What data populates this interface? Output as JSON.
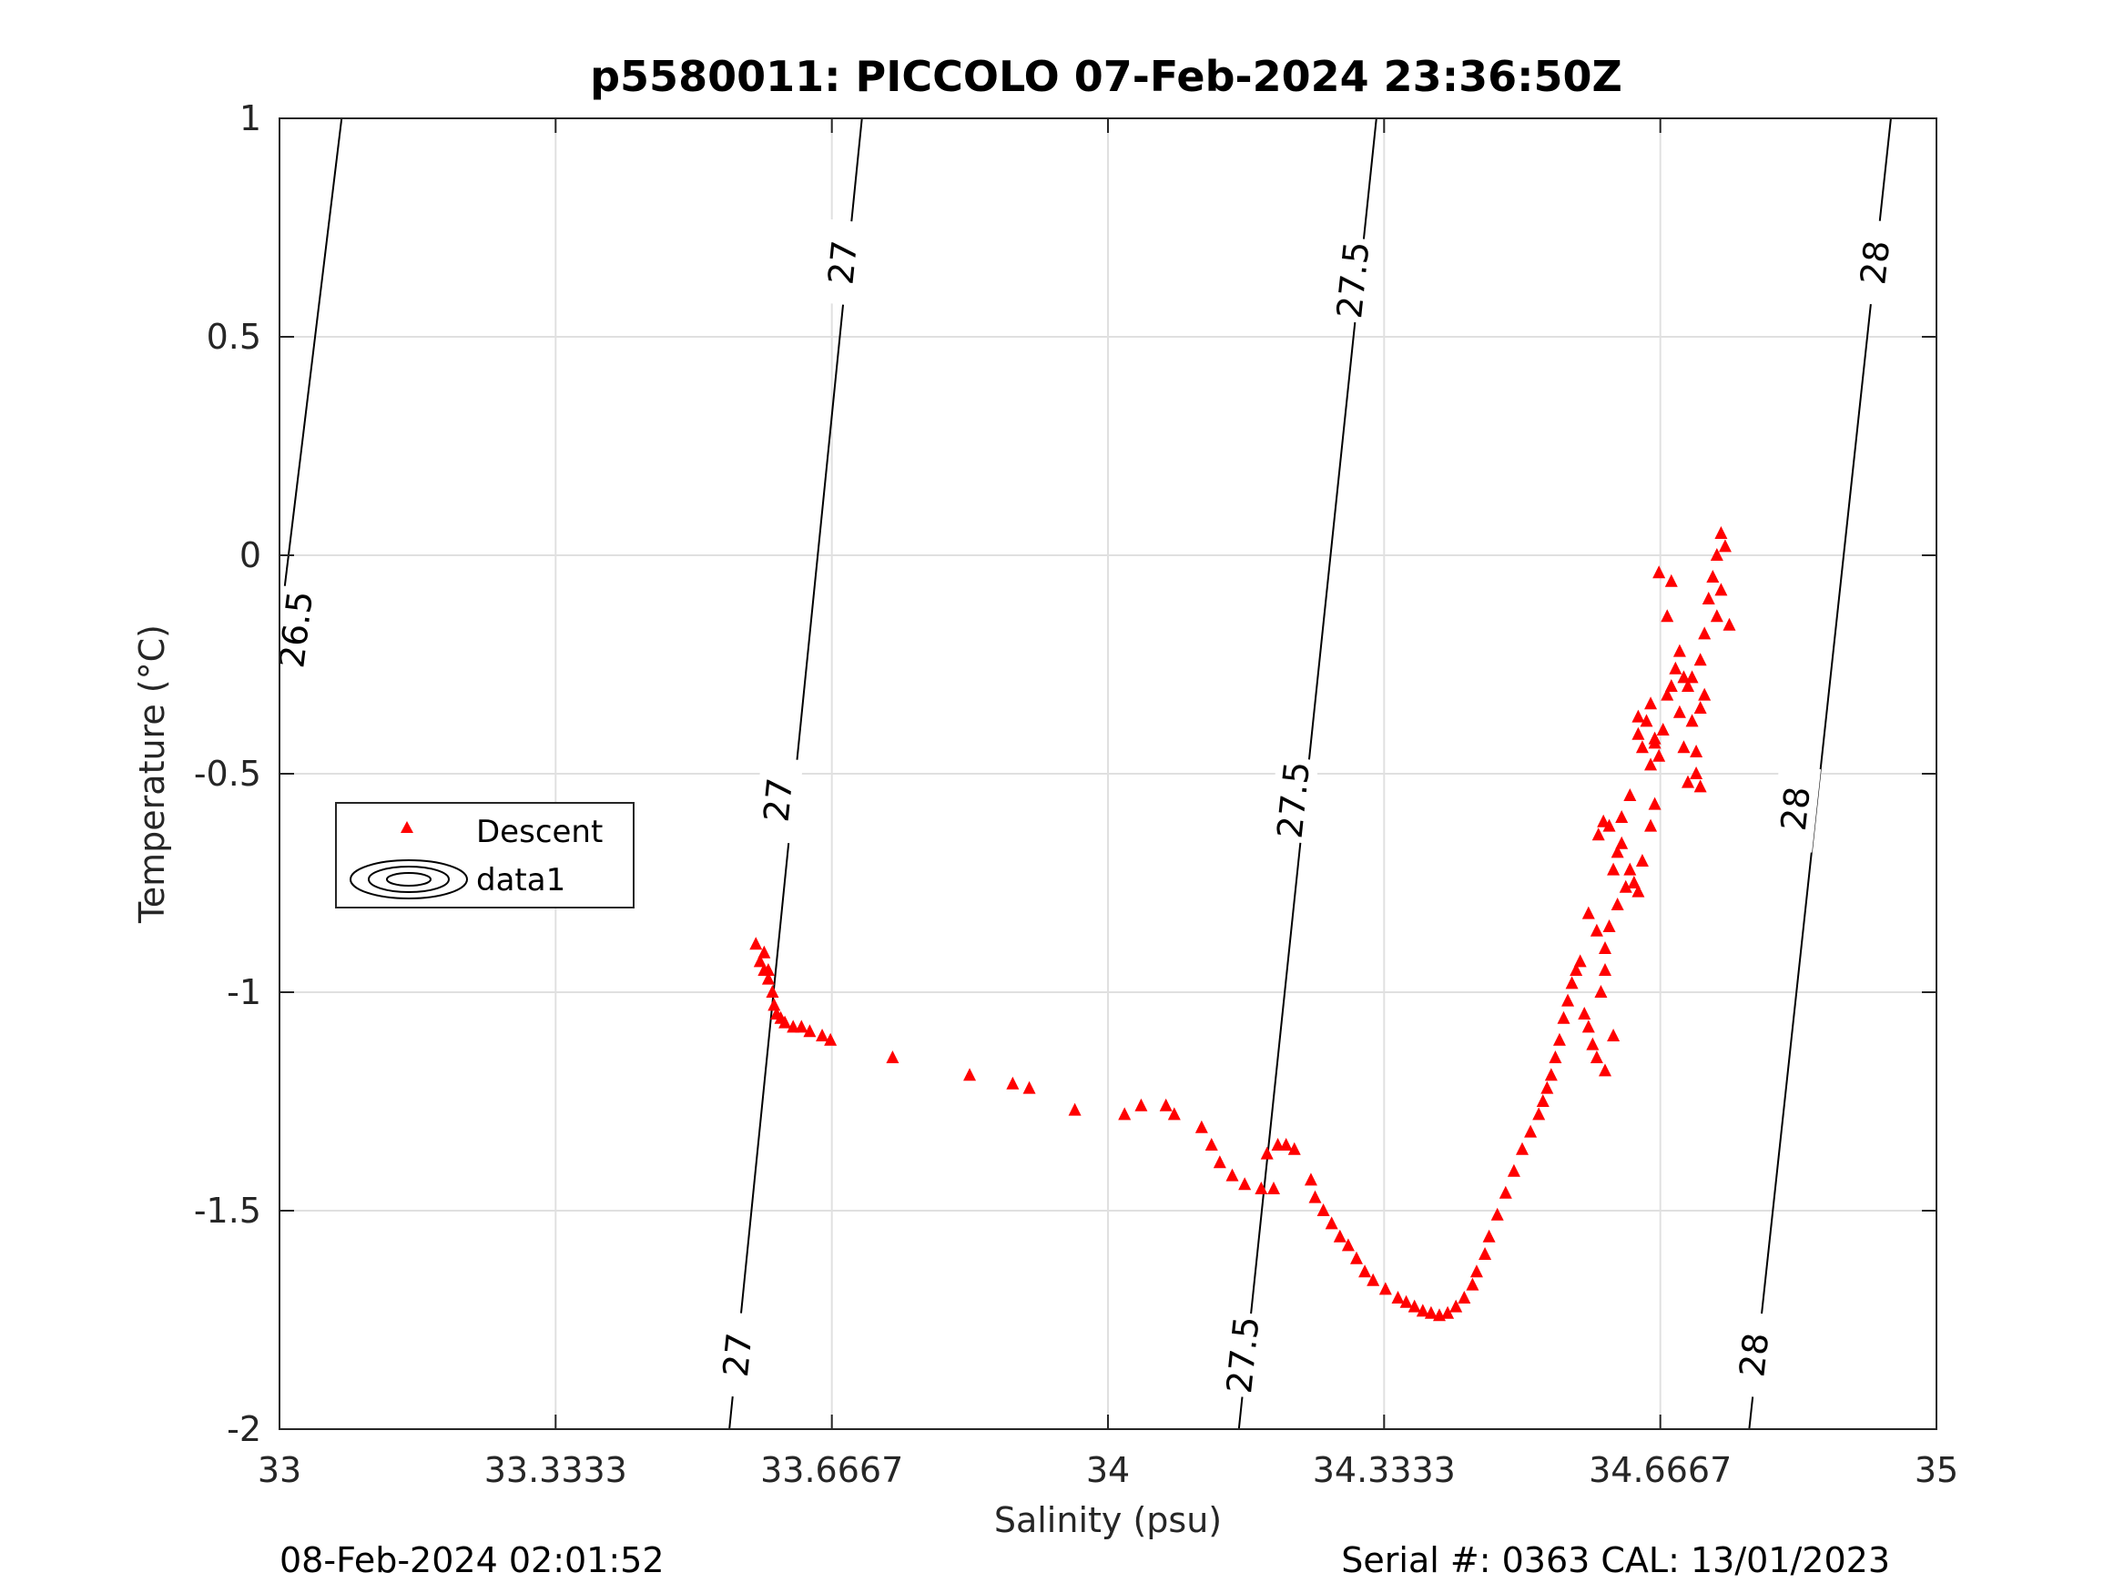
{
  "chart_data": {
    "type": "scatter",
    "title": "p5580011: PICCOLO 07-Feb-2024 23:36:50Z",
    "xlabel": "Salinity (psu)",
    "ylabel": "Temperature (°C)",
    "xlim": [
      33,
      35
    ],
    "ylim": [
      -2,
      1
    ],
    "xticks": [
      33,
      33.3333,
      33.6667,
      34,
      34.3333,
      34.6667,
      35
    ],
    "xtick_labels": [
      "33",
      "33.3333",
      "33.6667",
      "34",
      "34.3333",
      "34.6667",
      "35"
    ],
    "yticks": [
      1,
      0.5,
      0,
      -0.5,
      -1,
      -1.5,
      -2
    ],
    "ytick_labels": [
      "1",
      "0.5",
      "0",
      "-0.5",
      "-1",
      "-1.5",
      "-2"
    ],
    "grid": true,
    "legend_position": "left",
    "legend": [
      "Descent",
      "data1"
    ],
    "footer_left": "08-Feb-2024 02:01:52",
    "footer_right": "Serial #: 0363  CAL: 13/01/2023",
    "colors": {
      "descent": "#ff0000",
      "isopycnal": "#000000",
      "grid": "#e0e0e0"
    },
    "isopycnals": [
      {
        "label": "26.5",
        "points": [
          [
            33.075,
            1.0
          ],
          [
            33.0,
            -0.17
          ]
        ],
        "label_positions": [
          [
            33.02,
            -0.17
          ]
        ]
      },
      {
        "label": "27",
        "points": [
          [
            33.703,
            1.0
          ],
          [
            33.543,
            -2.0
          ]
        ],
        "label_positions": [
          [
            33.68,
            0.67
          ],
          [
            33.602,
            -0.56
          ],
          [
            33.553,
            -1.83
          ]
        ]
      },
      {
        "label": "27.5",
        "points": [
          [
            34.324,
            1.0
          ],
          [
            34.158,
            -2.0
          ]
        ],
        "label_positions": [
          [
            34.296,
            0.63
          ],
          [
            34.224,
            -0.56
          ],
          [
            34.163,
            -1.83
          ]
        ]
      },
      {
        "label": "28",
        "points": [
          [
            34.945,
            1.0
          ],
          [
            34.774,
            -2.0
          ]
        ],
        "label_positions": [
          [
            34.926,
            0.67
          ],
          [
            34.83,
            -0.58
          ],
          [
            34.78,
            -1.83
          ]
        ]
      }
    ],
    "series": [
      {
        "name": "Descent",
        "marker": "triangle",
        "points": [
          [
            33.575,
            -0.89
          ],
          [
            33.585,
            -0.91
          ],
          [
            33.58,
            -0.93
          ],
          [
            33.585,
            -0.95
          ],
          [
            33.59,
            -0.95
          ],
          [
            33.59,
            -0.97
          ],
          [
            33.595,
            -1.0
          ],
          [
            33.597,
            -1.03
          ],
          [
            33.6,
            -1.05
          ],
          [
            33.605,
            -1.06
          ],
          [
            33.61,
            -1.07
          ],
          [
            33.62,
            -1.08
          ],
          [
            33.63,
            -1.08
          ],
          [
            33.64,
            -1.09
          ],
          [
            33.655,
            -1.1
          ],
          [
            33.665,
            -1.11
          ],
          [
            33.74,
            -1.15
          ],
          [
            33.833,
            -1.19
          ],
          [
            33.885,
            -1.21
          ],
          [
            33.905,
            -1.22
          ],
          [
            33.96,
            -1.27
          ],
          [
            34.02,
            -1.28
          ],
          [
            34.04,
            -1.26
          ],
          [
            34.07,
            -1.26
          ],
          [
            34.08,
            -1.28
          ],
          [
            34.113,
            -1.31
          ],
          [
            34.125,
            -1.35
          ],
          [
            34.135,
            -1.39
          ],
          [
            34.15,
            -1.42
          ],
          [
            34.165,
            -1.44
          ],
          [
            34.185,
            -1.45
          ],
          [
            34.2,
            -1.45
          ],
          [
            34.192,
            -1.37
          ],
          [
            34.205,
            -1.35
          ],
          [
            34.215,
            -1.35
          ],
          [
            34.225,
            -1.36
          ],
          [
            34.245,
            -1.43
          ],
          [
            34.25,
            -1.47
          ],
          [
            34.26,
            -1.5
          ],
          [
            34.27,
            -1.53
          ],
          [
            34.28,
            -1.56
          ],
          [
            34.29,
            -1.58
          ],
          [
            34.3,
            -1.61
          ],
          [
            34.31,
            -1.64
          ],
          [
            34.32,
            -1.66
          ],
          [
            34.335,
            -1.68
          ],
          [
            34.35,
            -1.7
          ],
          [
            34.36,
            -1.71
          ],
          [
            34.37,
            -1.72
          ],
          [
            34.38,
            -1.73
          ],
          [
            34.39,
            -1.735
          ],
          [
            34.4,
            -1.74
          ],
          [
            34.41,
            -1.735
          ],
          [
            34.42,
            -1.72
          ],
          [
            34.43,
            -1.7
          ],
          [
            34.44,
            -1.67
          ],
          [
            34.445,
            -1.64
          ],
          [
            34.455,
            -1.6
          ],
          [
            34.46,
            -1.56
          ],
          [
            34.47,
            -1.51
          ],
          [
            34.48,
            -1.46
          ],
          [
            34.49,
            -1.41
          ],
          [
            34.5,
            -1.36
          ],
          [
            34.51,
            -1.32
          ],
          [
            34.52,
            -1.28
          ],
          [
            34.525,
            -1.25
          ],
          [
            34.53,
            -1.22
          ],
          [
            34.535,
            -1.19
          ],
          [
            34.54,
            -1.15
          ],
          [
            34.545,
            -1.11
          ],
          [
            34.55,
            -1.06
          ],
          [
            34.555,
            -1.02
          ],
          [
            34.56,
            -0.98
          ],
          [
            34.565,
            -0.95
          ],
          [
            34.57,
            -0.93
          ],
          [
            34.575,
            -1.05
          ],
          [
            34.58,
            -1.08
          ],
          [
            34.585,
            -1.12
          ],
          [
            34.59,
            -1.15
          ],
          [
            34.6,
            -1.18
          ],
          [
            34.61,
            -1.1
          ],
          [
            34.595,
            -1.0
          ],
          [
            34.6,
            -0.95
          ],
          [
            34.605,
            -0.85
          ],
          [
            34.615,
            -0.8
          ],
          [
            34.625,
            -0.76
          ],
          [
            34.61,
            -0.72
          ],
          [
            34.615,
            -0.68
          ],
          [
            34.62,
            -0.66
          ],
          [
            34.62,
            -0.6
          ],
          [
            34.605,
            -0.62
          ],
          [
            34.63,
            -0.72
          ],
          [
            34.635,
            -0.75
          ],
          [
            34.64,
            -0.77
          ],
          [
            34.645,
            -0.7
          ],
          [
            34.655,
            -0.62
          ],
          [
            34.66,
            -0.57
          ],
          [
            34.58,
            -0.82
          ],
          [
            34.59,
            -0.86
          ],
          [
            34.6,
            -0.9
          ],
          [
            34.592,
            -0.64
          ],
          [
            34.598,
            -0.61
          ],
          [
            34.63,
            -0.55
          ],
          [
            34.64,
            -0.41
          ],
          [
            34.645,
            -0.44
          ],
          [
            34.65,
            -0.38
          ],
          [
            34.655,
            -0.34
          ],
          [
            34.66,
            -0.42
          ],
          [
            34.665,
            -0.46
          ],
          [
            34.67,
            -0.4
          ],
          [
            34.675,
            -0.32
          ],
          [
            34.68,
            -0.3
          ],
          [
            34.685,
            -0.26
          ],
          [
            34.69,
            -0.36
          ],
          [
            34.695,
            -0.44
          ],
          [
            34.7,
            -0.52
          ],
          [
            34.71,
            -0.5
          ],
          [
            34.705,
            -0.28
          ],
          [
            34.715,
            -0.24
          ],
          [
            34.72,
            -0.18
          ],
          [
            34.725,
            -0.1
          ],
          [
            34.73,
            -0.05
          ],
          [
            34.735,
            0.0
          ],
          [
            34.74,
            0.05
          ],
          [
            34.745,
            0.02
          ],
          [
            34.74,
            -0.08
          ],
          [
            34.735,
            -0.14
          ],
          [
            34.72,
            -0.32
          ],
          [
            34.715,
            -0.35
          ],
          [
            34.7,
            -0.3
          ],
          [
            34.695,
            -0.28
          ],
          [
            34.69,
            -0.22
          ],
          [
            34.68,
            -0.06
          ],
          [
            34.665,
            -0.04
          ],
          [
            34.675,
            -0.14
          ],
          [
            34.75,
            -0.16
          ],
          [
            34.64,
            -0.37
          ],
          [
            34.655,
            -0.48
          ],
          [
            34.66,
            -0.43
          ],
          [
            34.705,
            -0.38
          ],
          [
            34.71,
            -0.45
          ],
          [
            34.715,
            -0.53
          ]
        ]
      }
    ]
  }
}
